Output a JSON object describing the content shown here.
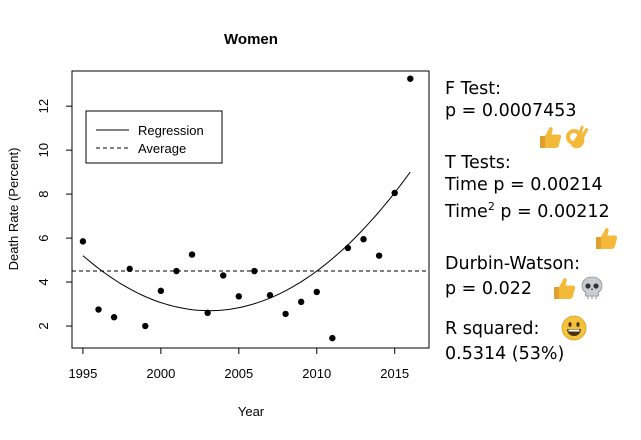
{
  "chart_data": {
    "type": "scatter",
    "title": "Women",
    "xlabel": "Year",
    "ylabel": "Death Rate (Percent)",
    "xlim": [
      1994.3,
      2017.2
    ],
    "ylim": [
      1.0,
      13.6
    ],
    "x_ticks": [
      1995,
      2000,
      2005,
      2010,
      2015
    ],
    "y_ticks": [
      2,
      4,
      6,
      8,
      10,
      12
    ],
    "legend_position": "top-left",
    "grid": false,
    "series": [
      {
        "name": "",
        "type": "scatter",
        "x": [
          1995,
          1996,
          1997,
          1998,
          1999,
          2000,
          2001,
          2002,
          2003,
          2004,
          2005,
          2006,
          2007,
          2008,
          2009,
          2010,
          2011,
          2012,
          2013,
          2014,
          2015,
          2016
        ],
        "y": [
          5.85,
          2.75,
          2.4,
          4.6,
          2.0,
          3.6,
          4.5,
          5.25,
          2.6,
          4.3,
          3.35,
          4.5,
          3.4,
          2.55,
          3.1,
          3.55,
          1.45,
          5.55,
          5.95,
          5.2,
          8.05,
          13.25
        ]
      },
      {
        "name": "Regression",
        "type": "line",
        "style": "solid",
        "fit": "quadratic",
        "x_range": [
          1995,
          2016
        ]
      },
      {
        "name": "Average",
        "type": "line",
        "style": "dashed",
        "value": 4.5
      }
    ]
  },
  "stats": {
    "f_test_label": "F Test:",
    "f_test_p": "p = 0.0007453",
    "t_tests_label": "T Tests:",
    "time_p": "Time p = 0.00214",
    "time2_prefix": "Time",
    "time2_sup": "2",
    "time2_p": " p = 0.00212",
    "dw_label": "Durbin-Watson:",
    "dw_p": "p = 0.022",
    "r_squared_label": "R squared:",
    "r_squared_value": "0.5314 (53%)"
  },
  "icons": {
    "f_test": [
      "thumbs-up-icon",
      "ok-hand-icon"
    ],
    "t_tests": [
      "thumbs-up-icon"
    ],
    "durbin_watson": [
      "thumbs-up-icon",
      "skull-icon"
    ],
    "r_squared": [
      "grinning-face-icon"
    ]
  },
  "colors": {
    "emoji_yellow": "#f5b93a",
    "skull": "#c9ccd1"
  }
}
